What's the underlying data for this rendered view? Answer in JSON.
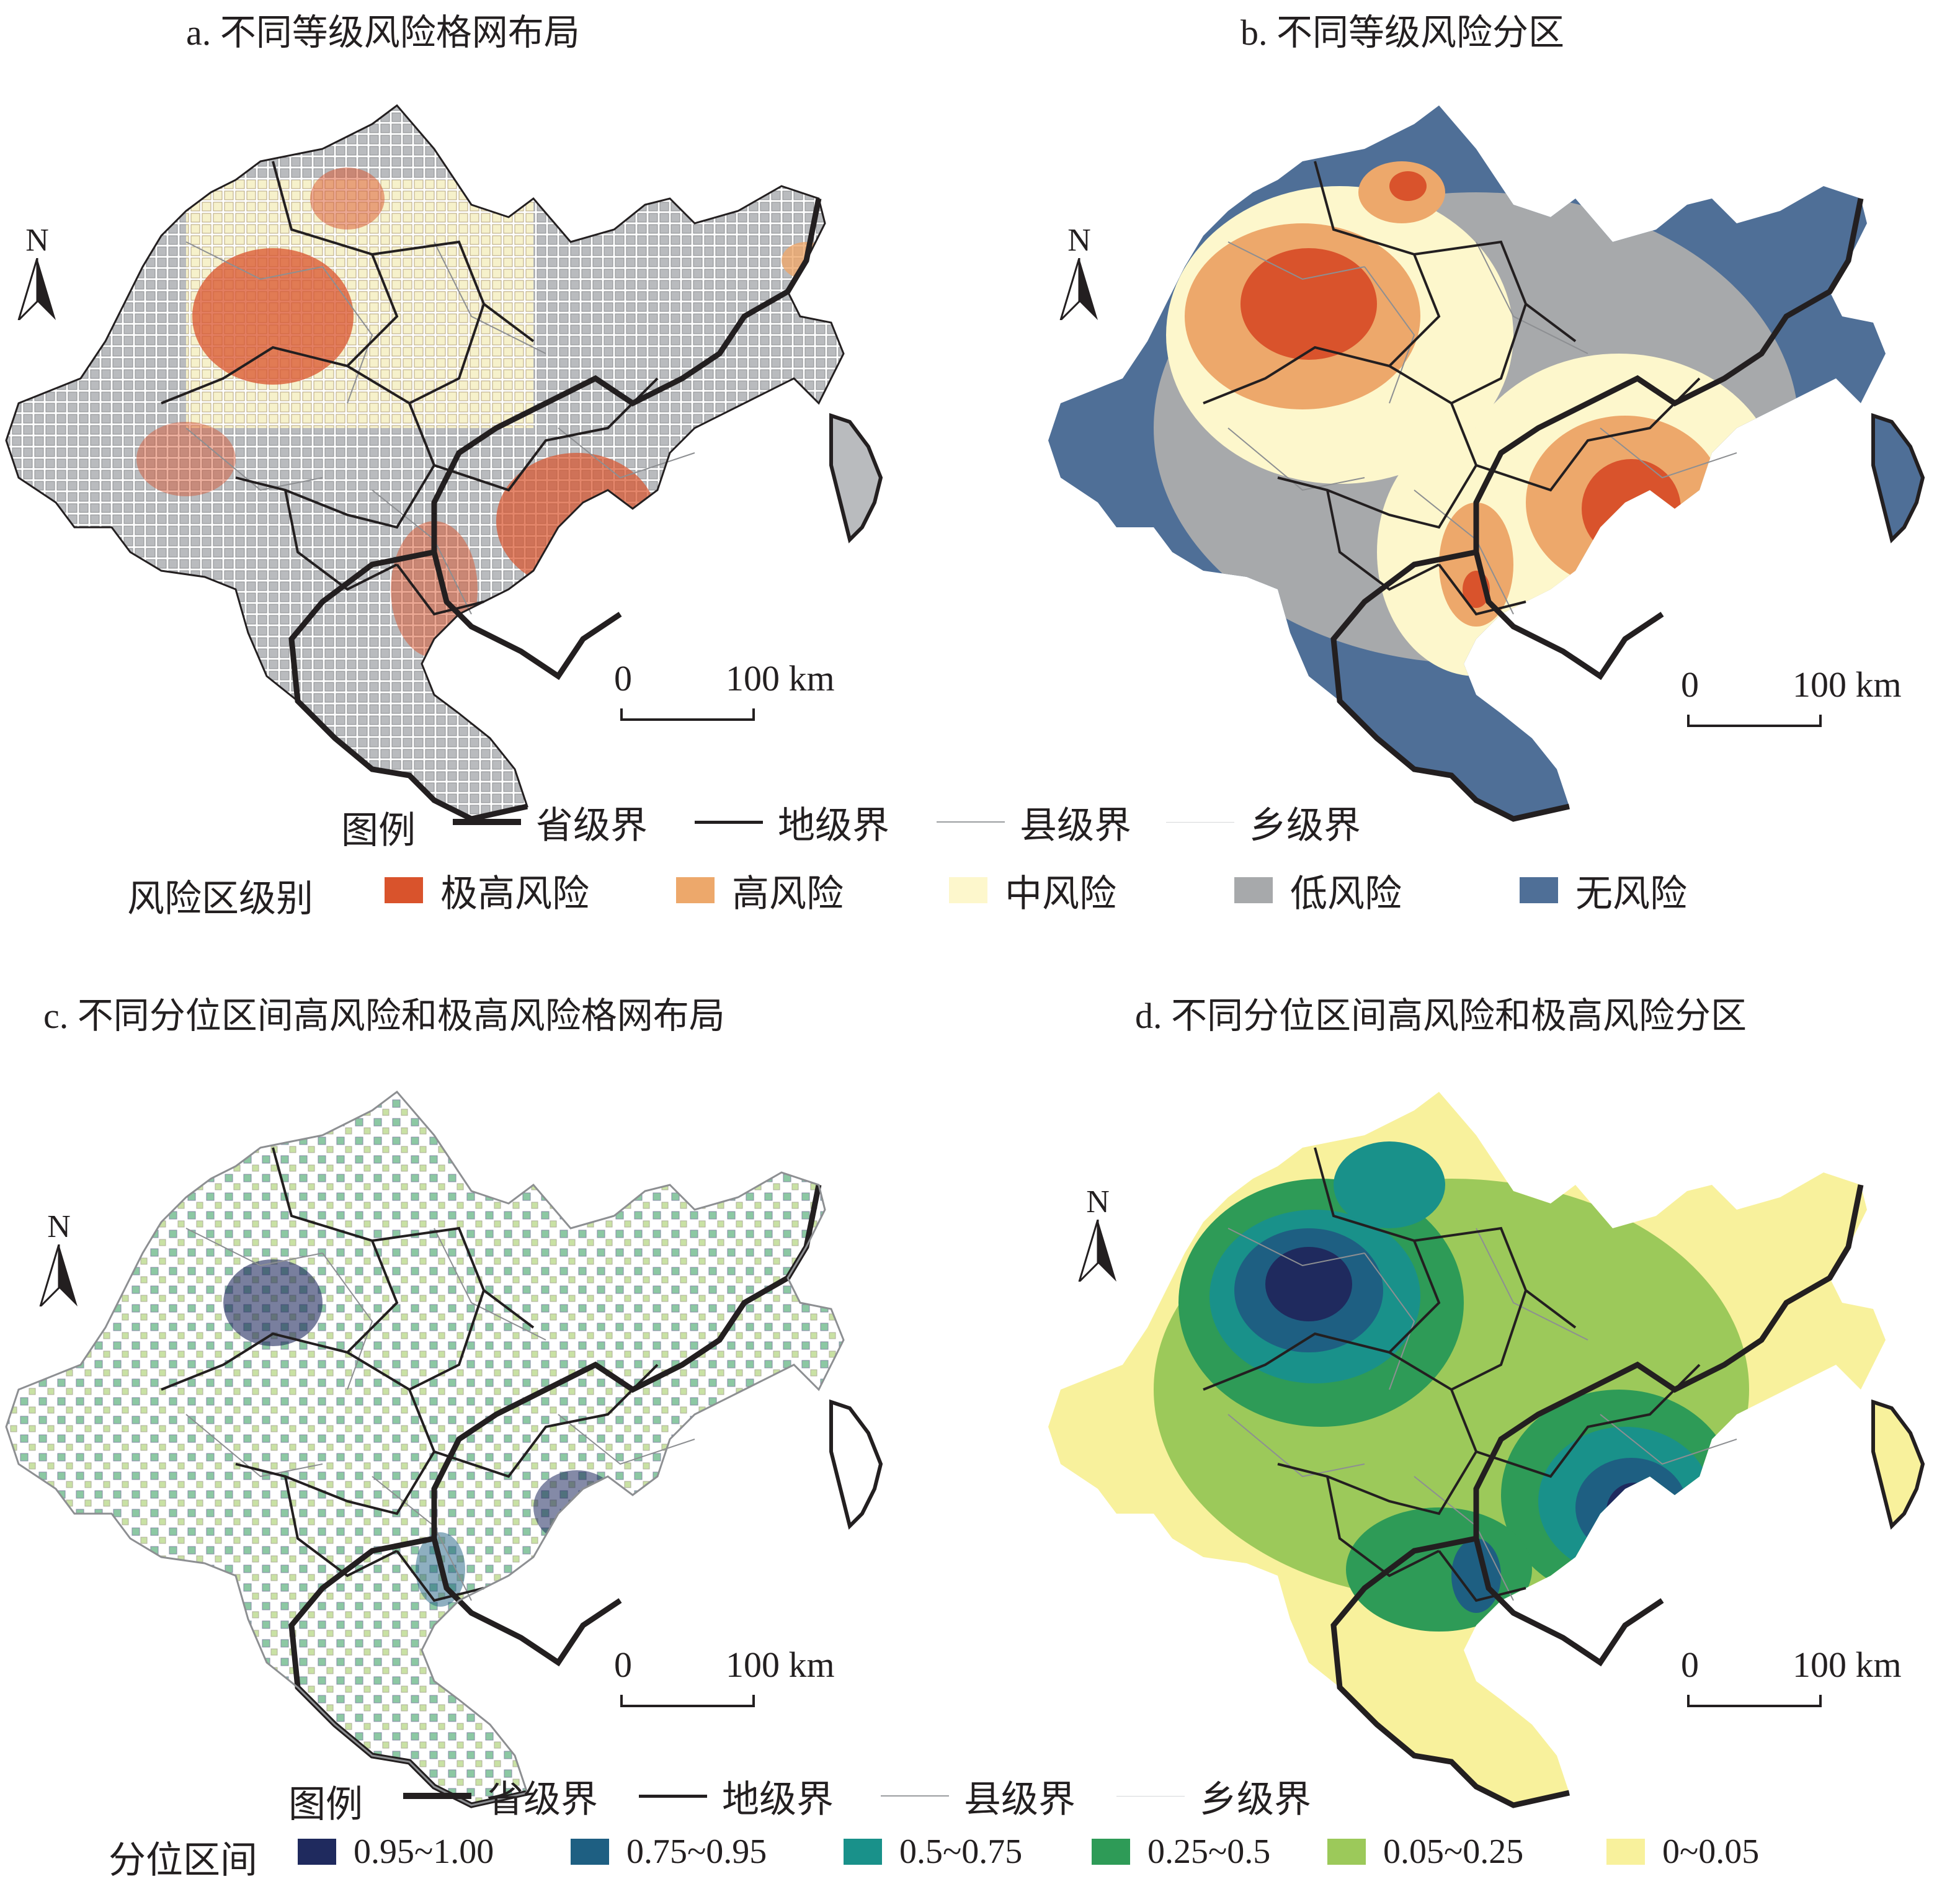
{
  "panels": {
    "a": {
      "title": "a. 不同等级风险格网布局"
    },
    "b": {
      "title": "b. 不同等级风险分区"
    },
    "c": {
      "title": "c. 不同分位区间高风险和极高风险格网布局"
    },
    "d": {
      "title": "d. 不同分位区间高风险和极高风险分区"
    }
  },
  "north_label": "N",
  "scale_bar": {
    "zero": "0",
    "end": "100 km"
  },
  "legend_boundaries": {
    "title": "图例",
    "items": [
      {
        "label": "省级界",
        "style": "thick-black"
      },
      {
        "label": "地级界",
        "style": "medium-black"
      },
      {
        "label": "县级界",
        "style": "thin-gray"
      },
      {
        "label": "乡级界",
        "style": "hairline-lightgray"
      }
    ]
  },
  "legend_risk": {
    "title": "风险区级别",
    "items": [
      {
        "label": "极高风险",
        "color": "#d9532c"
      },
      {
        "label": "高风险",
        "color": "#eda86b"
      },
      {
        "label": "中风险",
        "color": "#fdf7cc"
      },
      {
        "label": "低风险",
        "color": "#a7a9ab"
      },
      {
        "label": "无风险",
        "color": "#4f6f97"
      }
    ]
  },
  "legend_quantile": {
    "title": "分位区间",
    "items": [
      {
        "label": "0.95~1.00",
        "color": "#1f2a5e"
      },
      {
        "label": "0.75~0.95",
        "color": "#1e5f82"
      },
      {
        "label": "0.5~0.75",
        "color": "#19918a"
      },
      {
        "label": "0.25~0.5",
        "color": "#2e9b57"
      },
      {
        "label": "0.05~0.25",
        "color": "#9cc95a"
      },
      {
        "label": "0~0.05",
        "color": "#f8f19c"
      }
    ]
  }
}
